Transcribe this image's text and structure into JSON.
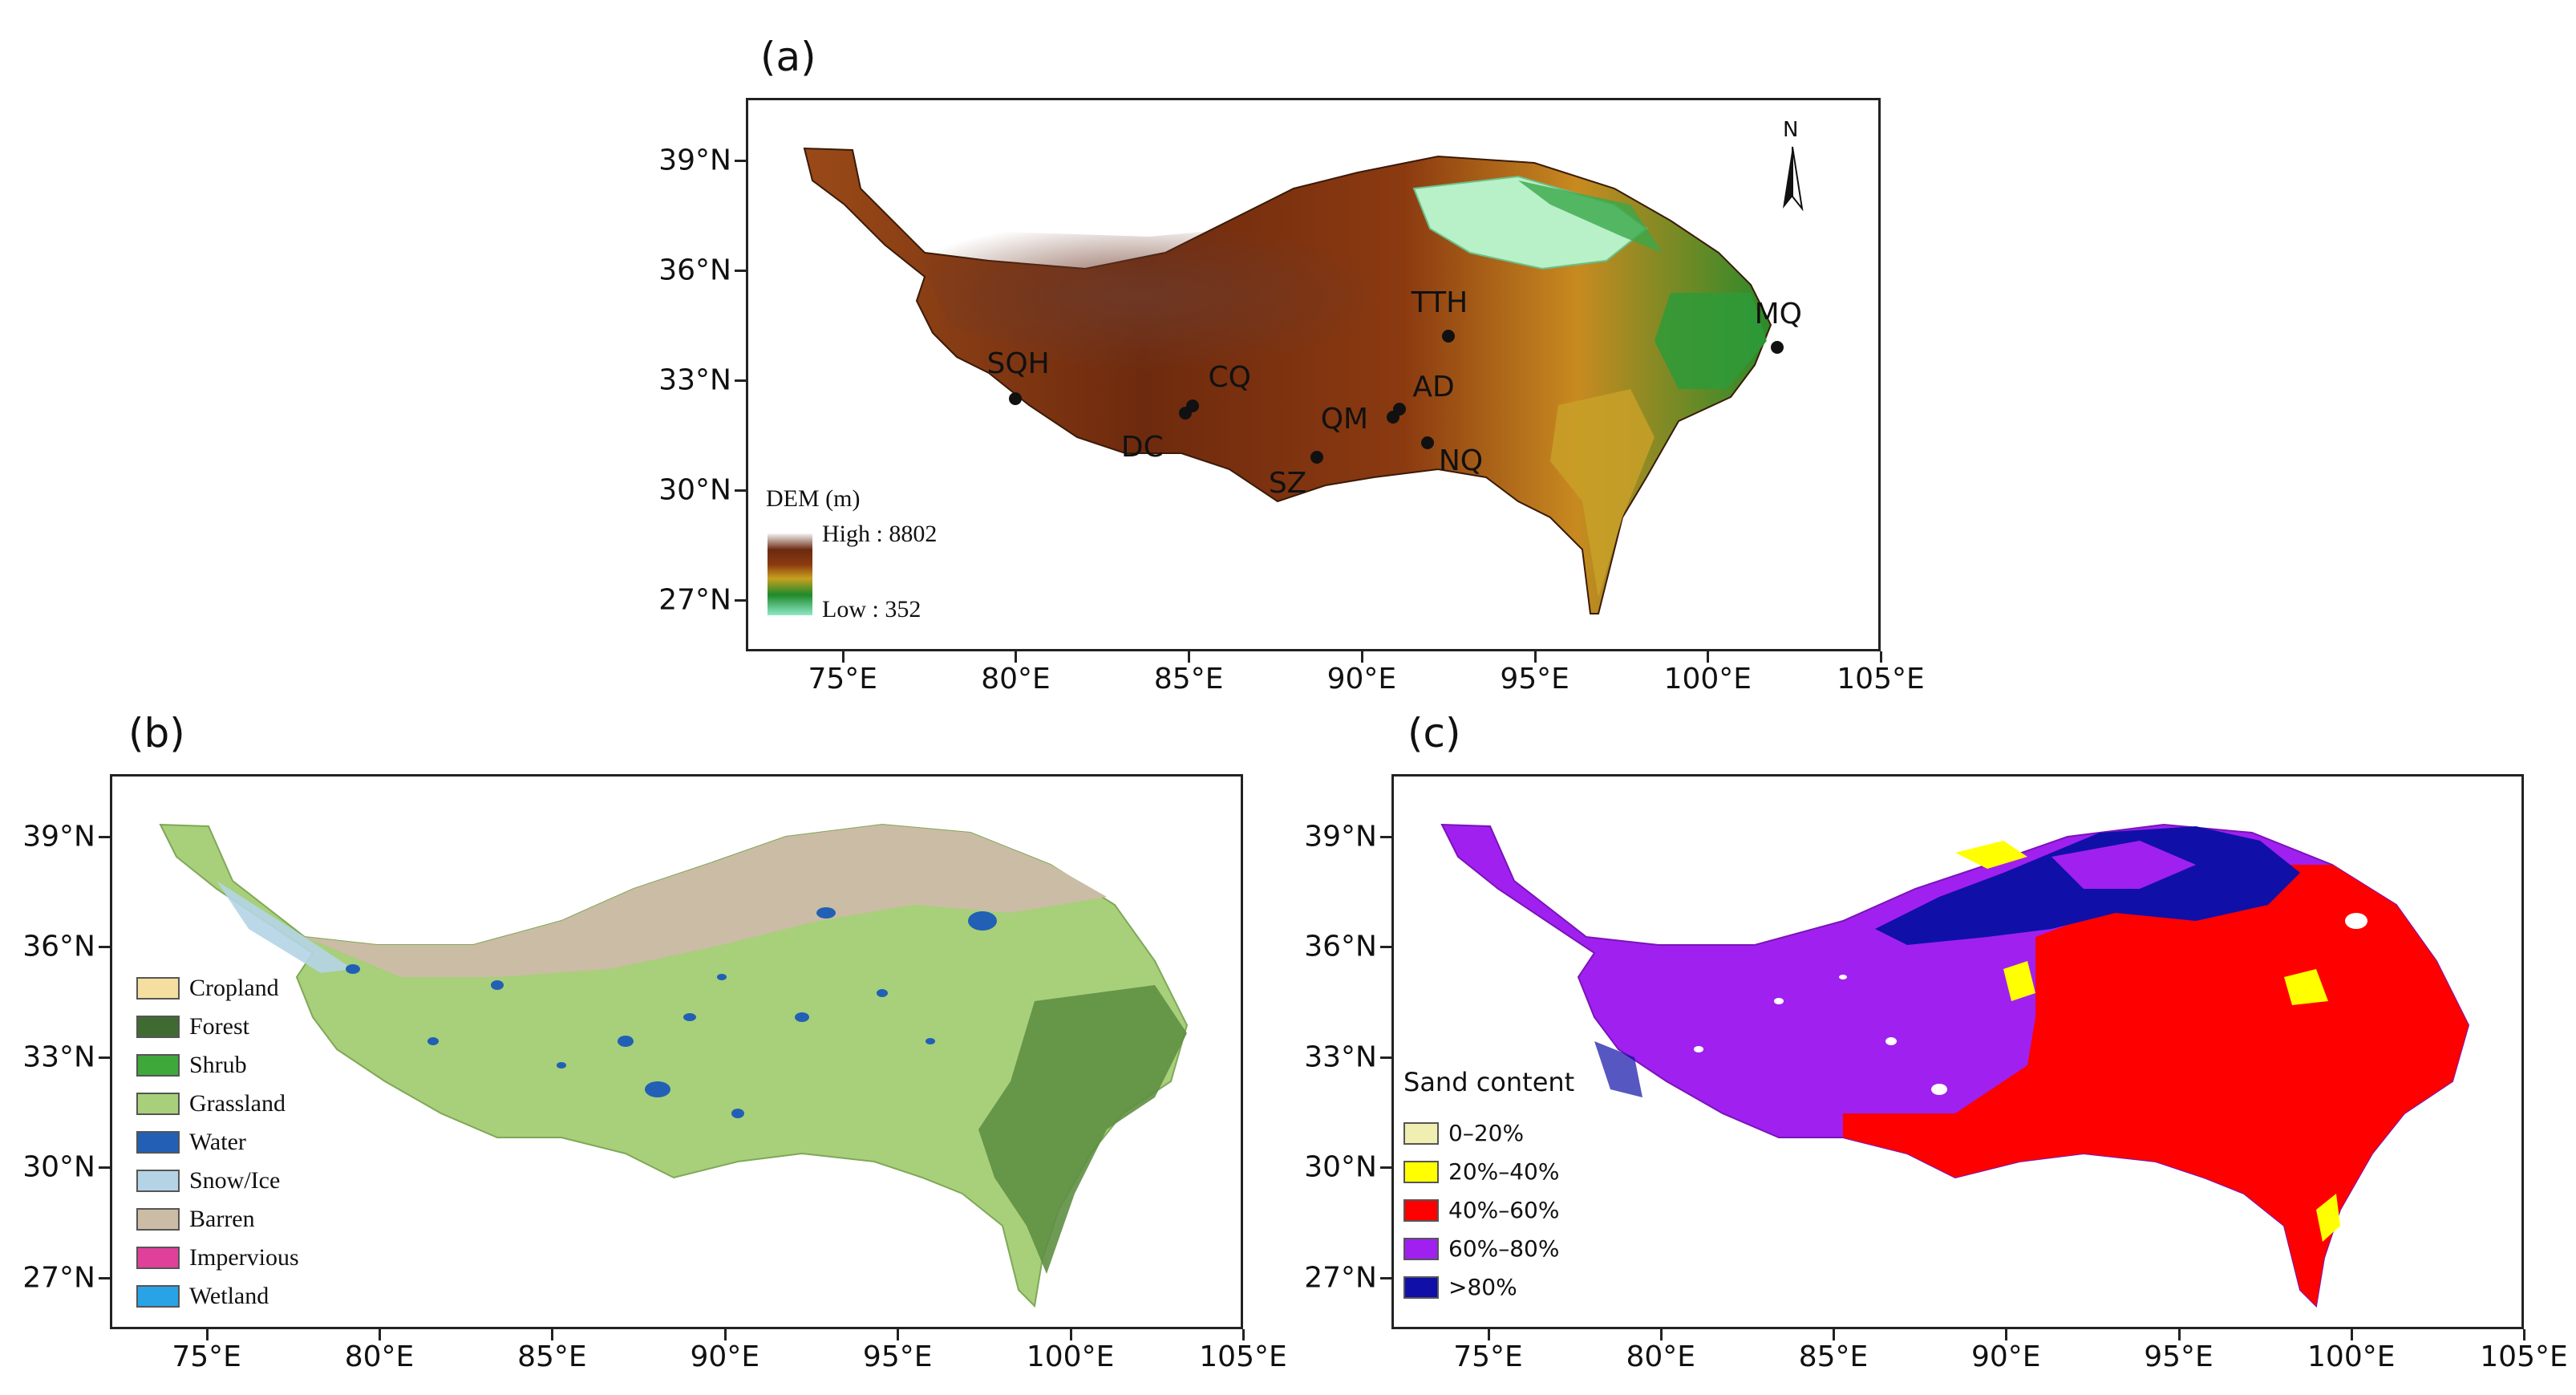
{
  "panels": {
    "a": {
      "label": "(a)",
      "north": "N",
      "dem_title": "DEM (m)",
      "dem_high": "High : 8802",
      "dem_low": "Low : 352",
      "dem_colors": [
        "#5a2a10",
        "#8b3a10",
        "#c8a020",
        "#1e8a2a",
        "#8fe8c8"
      ],
      "x_ticks": [
        "75°E",
        "80°E",
        "85°E",
        "90°E",
        "95°E",
        "100°E",
        "105°E"
      ],
      "y_ticks": [
        "39°N",
        "36°N",
        "33°N",
        "30°N",
        "27°N"
      ],
      "sites": [
        {
          "name": "SQH",
          "lon": 80.0,
          "lat": 32.5
        },
        {
          "name": "CQ",
          "lon": 85.1,
          "lat": 32.3
        },
        {
          "name": "DC",
          "lon": 84.9,
          "lat": 32.1
        },
        {
          "name": "TTH",
          "lon": 92.5,
          "lat": 34.2
        },
        {
          "name": "MQ",
          "lon": 102.0,
          "lat": 33.9
        },
        {
          "name": "AD",
          "lon": 91.1,
          "lat": 32.2
        },
        {
          "name": "QM",
          "lon": 90.9,
          "lat": 32.0
        },
        {
          "name": "NQ",
          "lon": 91.9,
          "lat": 31.3
        },
        {
          "name": "SZ",
          "lon": 88.7,
          "lat": 30.9
        }
      ]
    },
    "b": {
      "label": "(b)",
      "x_ticks": [
        "75°E",
        "80°E",
        "85°E",
        "90°E",
        "95°E",
        "100°E",
        "105°E"
      ],
      "y_ticks": [
        "39°N",
        "36°N",
        "33°N",
        "30°N",
        "27°N"
      ],
      "legend": [
        {
          "label": "Cropland",
          "color": "#f5dfa0"
        },
        {
          "label": "Forest",
          "color": "#3f6b32"
        },
        {
          "label": "Shrub",
          "color": "#3fa83a"
        },
        {
          "label": "Grassland",
          "color": "#a8cf7a"
        },
        {
          "label": "Water",
          "color": "#2160b5"
        },
        {
          "label": "Snow/Ice",
          "color": "#b4d4e6"
        },
        {
          "label": "Barren",
          "color": "#cbbca5"
        },
        {
          "label": "Impervious",
          "color": "#e0409a"
        },
        {
          "label": "Wetland",
          "color": "#29a3e6"
        }
      ]
    },
    "c": {
      "label": "(c)",
      "legend_title": "Sand content",
      "x_ticks": [
        "75°E",
        "80°E",
        "85°E",
        "90°E",
        "95°E",
        "100°E",
        "105°E"
      ],
      "y_ticks": [
        "39°N",
        "36°N",
        "33°N",
        "30°N",
        "27°N"
      ],
      "legend": [
        {
          "label": "0–20%",
          "color": "#f0eeb0"
        },
        {
          "label": "20%–40%",
          "color": "#ffff00"
        },
        {
          "label": "40%–60%",
          "color": "#ff0000"
        },
        {
          "label": "60%–80%",
          "color": "#a020f0"
        },
        {
          "label": ">80%",
          "color": "#1010a8"
        }
      ]
    }
  }
}
